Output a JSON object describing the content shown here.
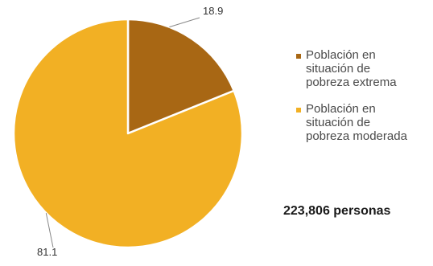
{
  "chart_data": {
    "type": "pie",
    "categories": [
      "Población en situación de pobreza extrema",
      "Población en situación de pobreza moderada"
    ],
    "values": [
      18.9,
      81.1
    ],
    "data_labels": [
      "18.9",
      "81.1"
    ],
    "colors": [
      "#A86714",
      "#F2B024"
    ],
    "legend_placement": "right",
    "title": "",
    "annotation": "223,806 personas"
  },
  "legend": {
    "items": [
      {
        "label": "Población en\nsituación de\npobreza extrema",
        "color": "#A86714"
      },
      {
        "label": "Población en\nsituación de\npobreza moderada",
        "color": "#F2B024"
      }
    ]
  },
  "total_label": "223,806 personas"
}
